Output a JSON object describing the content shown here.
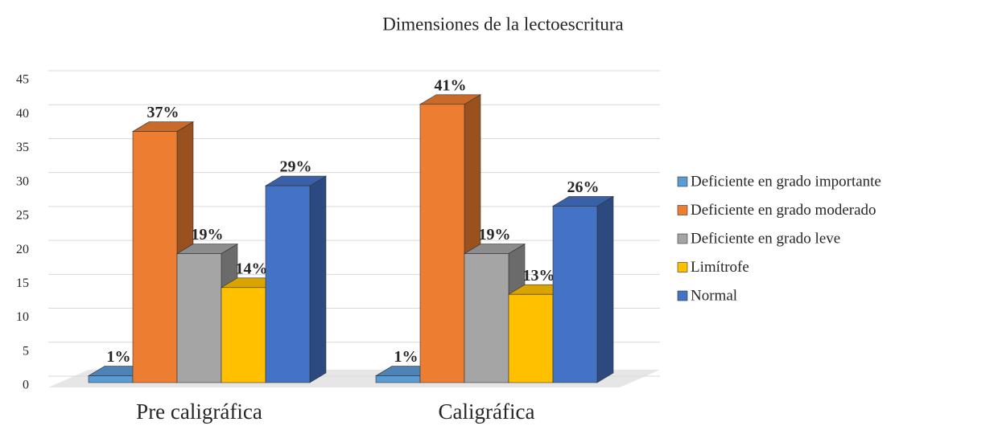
{
  "chart_data": {
    "type": "bar3d",
    "title": "Dimensiones de la lectoescritura",
    "categories": [
      "Pre caligráfica",
      "Caligráfica"
    ],
    "series": [
      {
        "name": "Deficiente en grado importante",
        "color": "#5b9bd5",
        "values": [
          1,
          1
        ],
        "value_labels": [
          "1%",
          "1%"
        ]
      },
      {
        "name": "Deficiente en grado moderado",
        "color": "#ed7d31",
        "values": [
          37,
          41
        ],
        "value_labels": [
          "37%",
          "41%"
        ]
      },
      {
        "name": "Deficiente en grado leve",
        "color": "#a5a5a5",
        "values": [
          19,
          19
        ],
        "value_labels": [
          "19%",
          "19%"
        ]
      },
      {
        "name": "Limítrofe",
        "color": "#ffc000",
        "values": [
          14,
          13
        ],
        "value_labels": [
          "14%",
          "13%"
        ]
      },
      {
        "name": "Normal",
        "color": "#4472c4",
        "values": [
          29,
          26
        ],
        "value_labels": [
          "29%",
          "26%"
        ]
      }
    ],
    "ylim": [
      0,
      45
    ],
    "yticks": [
      0,
      5,
      10,
      15,
      20,
      25,
      30,
      35,
      40,
      45
    ],
    "grid": true,
    "legend": "right"
  }
}
